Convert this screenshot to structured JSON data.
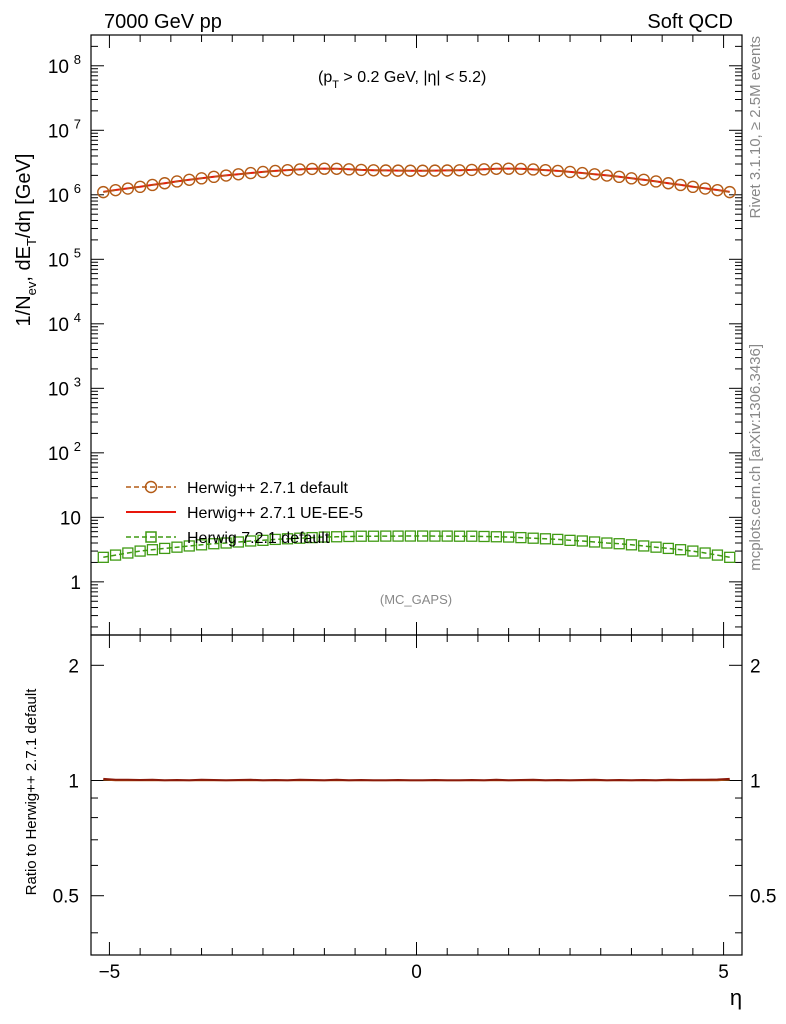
{
  "header": {
    "left": "7000 GeV pp",
    "right": "Soft QCD"
  },
  "side_text": {
    "rivet": "Rivet 3.1.10, ≥ 2.5M events",
    "mcplots": "mcplots.cern.ch [arXiv:1306.3436]"
  },
  "annotation": {
    "cut_prefix": "(p",
    "cut_sub": "T",
    "cut_suffix": " > 0.2 GeV, |η| < 5.2)",
    "analysis": "(MC_GAPS)"
  },
  "axes": {
    "ylabel_main_a": "1/N",
    "ylabel_main_sub1": "ev",
    "ylabel_main_b": ", dE",
    "ylabel_main_sub2": "T",
    "ylabel_main_c": "/dη [GeV]",
    "ylabel_ratio": "Ratio to Herwig++ 2.7.1 default",
    "xlabel": "η",
    "main_yticks": [
      {
        "value": 1,
        "label": "1"
      },
      {
        "value": 10,
        "label": "10"
      },
      {
        "value": 100,
        "label": "10",
        "sup": "2"
      },
      {
        "value": 1000,
        "label": "10",
        "sup": "3"
      },
      {
        "value": 10000,
        "label": "10",
        "sup": "4"
      },
      {
        "value": 100000,
        "label": "10",
        "sup": "5"
      },
      {
        "value": 1000000,
        "label": "10",
        "sup": "6"
      },
      {
        "value": 10000000,
        "label": "10",
        "sup": "7"
      },
      {
        "value": 100000000,
        "label": "10",
        "sup": "8"
      }
    ],
    "ratio_yticks": [
      {
        "value": 0.5,
        "label": "0.5"
      },
      {
        "value": 1,
        "label": "1"
      },
      {
        "value": 2,
        "label": "2"
      }
    ],
    "xticks": [
      {
        "value": -5,
        "label": "−5"
      },
      {
        "value": 0,
        "label": "0"
      },
      {
        "value": 5,
        "label": "5"
      }
    ]
  },
  "legend": [
    {
      "label": "Herwig++ 2.7.1 default",
      "color": "#b35b16",
      "style": "dashed-circle"
    },
    {
      "label": "Herwig++ 2.7.1 UE-EE-5",
      "color": "#e8170c",
      "style": "solid"
    },
    {
      "label": "Herwig 7.2.1 default",
      "color": "#3f9a12",
      "style": "dashed-square"
    }
  ],
  "chart_data": {
    "type": "line",
    "title": "",
    "xlabel": "η",
    "ylabel": "1/N_ev, dE_T/dη [GeV]",
    "xlim": [
      -5.3,
      5.3
    ],
    "ylim": [
      0.15,
      300000000
    ],
    "yscale": "log",
    "ratio_ylim": [
      0.35,
      2.4
    ],
    "ratio_yscale": "log",
    "x": [
      -5.1,
      -4.9,
      -4.7,
      -4.5,
      -4.3,
      -4.1,
      -3.9,
      -3.7,
      -3.5,
      -3.3,
      -3.1,
      -2.9,
      -2.7,
      -2.5,
      -2.3,
      -2.1,
      -1.9,
      -1.7,
      -1.5,
      -1.3,
      -1.1,
      -0.9,
      -0.7,
      -0.5,
      -0.3,
      -0.1,
      0.1,
      0.3,
      0.5,
      0.7,
      0.9,
      1.1,
      1.3,
      1.5,
      1.7,
      1.9,
      2.1,
      2.3,
      2.5,
      2.7,
      2.9,
      3.1,
      3.3,
      3.5,
      3.7,
      3.9,
      4.1,
      4.3,
      4.5,
      4.7,
      4.9,
      5.1
    ],
    "series": [
      {
        "name": "Herwig++ 2.7.1 default",
        "color": "#b35b16",
        "values": [
          1100000,
          1180000,
          1250000,
          1330000,
          1420000,
          1510000,
          1610000,
          1710000,
          1800000,
          1900000,
          1990000,
          2080000,
          2170000,
          2260000,
          2340000,
          2410000,
          2470000,
          2520000,
          2540000,
          2530000,
          2480000,
          2430000,
          2400000,
          2380000,
          2370000,
          2360000,
          2360000,
          2370000,
          2380000,
          2400000,
          2430000,
          2480000,
          2530000,
          2540000,
          2520000,
          2470000,
          2410000,
          2340000,
          2260000,
          2170000,
          2080000,
          1990000,
          1900000,
          1800000,
          1710000,
          1610000,
          1510000,
          1420000,
          1330000,
          1250000,
          1180000,
          1100000
        ],
        "ratio": [
          1.005,
          1.0,
          1.0,
          1.0,
          1.0,
          1.0,
          1.0,
          1.0,
          1.0,
          1.0,
          1.0,
          1.0,
          1.0,
          1.0,
          1.0,
          1.0,
          1.0,
          1.0,
          1.0,
          1.0,
          1.0,
          1.0,
          1.0,
          1.0,
          1.0,
          1.0,
          1.0,
          1.0,
          1.0,
          1.0,
          1.0,
          1.0,
          1.0,
          1.0,
          1.0,
          1.0,
          1.0,
          1.0,
          1.0,
          1.0,
          1.0,
          1.0,
          1.0,
          1.0,
          1.0,
          1.0,
          1.0,
          1.0,
          1.0,
          1.0,
          1.0,
          1.005
        ]
      },
      {
        "name": "Herwig++ 2.7.1 UE-EE-5",
        "color": "#e8170c",
        "values": [
          1110000,
          1185000,
          1255000,
          1335000,
          1425000,
          1515000,
          1615000,
          1715000,
          1805000,
          1905000,
          1995000,
          2085000,
          2175000,
          2265000,
          2345000,
          2415000,
          2475000,
          2525000,
          2545000,
          2535000,
          2485000,
          2435000,
          2405000,
          2385000,
          2375000,
          2365000,
          2365000,
          2375000,
          2385000,
          2405000,
          2435000,
          2485000,
          2535000,
          2545000,
          2525000,
          2475000,
          2415000,
          2345000,
          2265000,
          2175000,
          2085000,
          1995000,
          1905000,
          1805000,
          1715000,
          1615000,
          1515000,
          1425000,
          1335000,
          1255000,
          1185000,
          1110000
        ],
        "ratio": [
          1.01,
          1.004,
          1.005,
          1.003,
          1.004,
          1.002,
          1.003,
          1.002,
          1.004,
          1.003,
          1.002,
          1.003,
          1.004,
          1.002,
          1.003,
          1.002,
          1.004,
          1.003,
          1.002,
          1.004,
          1.002,
          1.003,
          1.002,
          1.002,
          1.003,
          1.002,
          1.002,
          1.003,
          1.002,
          1.002,
          1.003,
          1.002,
          1.004,
          1.002,
          1.003,
          1.004,
          1.002,
          1.003,
          1.002,
          1.003,
          1.004,
          1.002,
          1.003,
          1.002,
          1.003,
          1.002,
          1.004,
          1.003,
          1.005,
          1.004,
          1.006,
          1.01
        ]
      },
      {
        "name": "Herwig 7.2.1 default",
        "color": "#3f9a12",
        "values": [
          2.4,
          2.6,
          2.8,
          3.0,
          3.15,
          3.3,
          3.45,
          3.6,
          3.75,
          3.9,
          4.0,
          4.15,
          4.3,
          4.4,
          4.55,
          4.65,
          4.75,
          4.85,
          4.95,
          5.0,
          5.05,
          5.1,
          5.1,
          5.12,
          5.12,
          5.13,
          5.13,
          5.12,
          5.12,
          5.1,
          5.1,
          5.05,
          5.0,
          4.95,
          4.85,
          4.75,
          4.65,
          4.55,
          4.4,
          4.3,
          4.15,
          4.0,
          3.9,
          3.75,
          3.6,
          3.45,
          3.3,
          3.15,
          3.0,
          2.8,
          2.6,
          2.4
        ]
      }
    ]
  }
}
